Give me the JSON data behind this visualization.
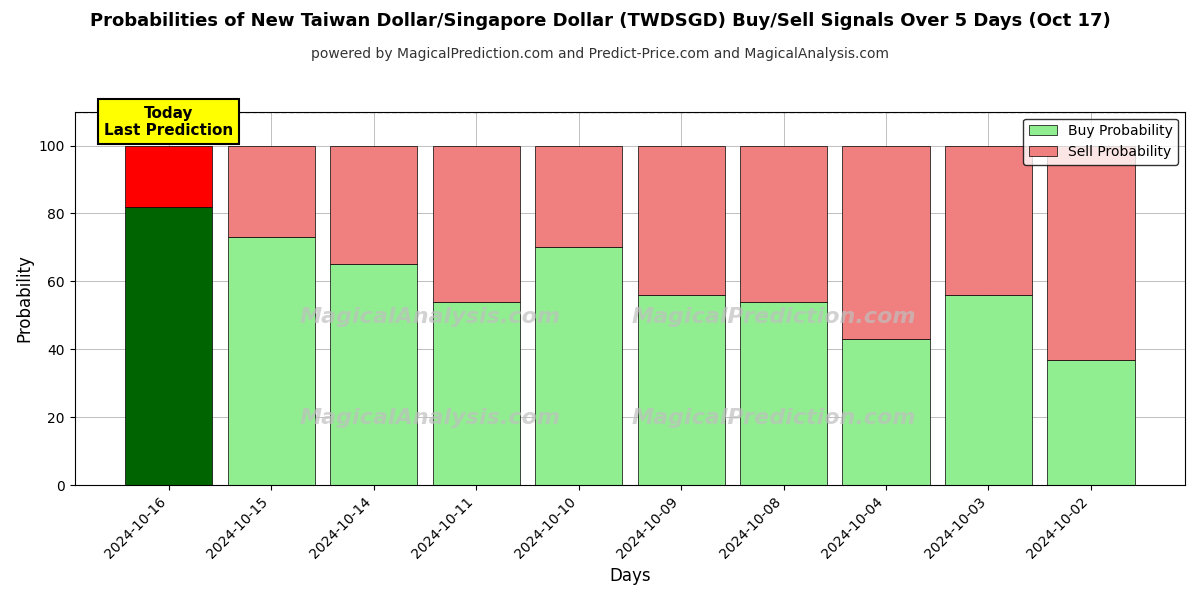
{
  "title": "Probabilities of New Taiwan Dollar/Singapore Dollar (TWDSGD) Buy/Sell Signals Over 5 Days (Oct 17)",
  "subtitle": "powered by MagicalPrediction.com and Predict-Price.com and MagicalAnalysis.com",
  "xlabel": "Days",
  "ylabel": "Probability",
  "dates": [
    "2024-10-16",
    "2024-10-15",
    "2024-10-14",
    "2024-10-11",
    "2024-10-10",
    "2024-10-09",
    "2024-10-08",
    "2024-10-04",
    "2024-10-03",
    "2024-10-02"
  ],
  "buy_values": [
    82,
    73,
    65,
    54,
    70,
    56,
    54,
    43,
    56,
    37
  ],
  "sell_values": [
    18,
    27,
    35,
    46,
    30,
    44,
    46,
    57,
    44,
    63
  ],
  "today_index": 0,
  "today_buy_color": "#006400",
  "today_sell_color": "#FF0000",
  "normal_buy_color": "#90EE90",
  "normal_sell_color": "#F08080",
  "today_label_bg": "#FFFF00",
  "watermark_text1": "MagicalAnalysis.com",
  "watermark_text2": "MagicalPrediction.com",
  "ylim": [
    0,
    110
  ],
  "dashed_line_y": 110,
  "legend_buy_label": "Buy Probability",
  "legend_sell_label": "Sell Probability",
  "bar_width": 0.85,
  "bar_edge_color": "#000000",
  "bar_edge_width": 0.5,
  "title_fontsize": 13,
  "subtitle_fontsize": 10,
  "axis_label_fontsize": 12,
  "tick_fontsize": 10
}
